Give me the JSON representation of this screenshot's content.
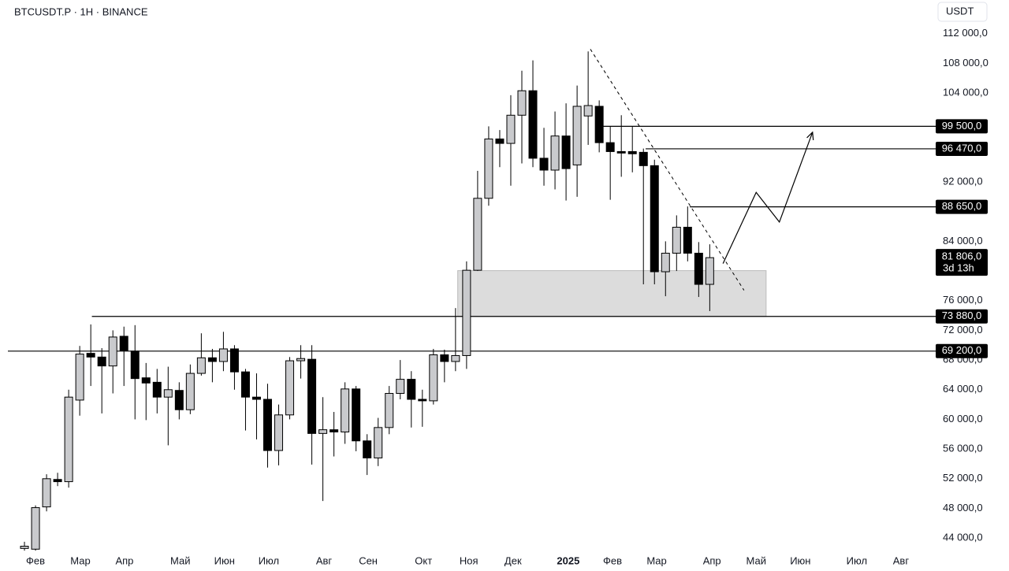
{
  "chart_data": {
    "type": "candlestick",
    "title": "BTCUSDT.P · 1H · BINANCE",
    "y_unit": "USDT",
    "open": [
      42600,
      42500,
      48200,
      51900,
      51600,
      62600,
      68900,
      68400,
      67200,
      71200,
      69200,
      65600,
      65000,
      63000,
      63900,
      61300,
      66200,
      68300,
      67800,
      69500,
      66400,
      63000,
      62700,
      55800,
      60600,
      67900,
      68100,
      58100,
      58600,
      58300,
      64100,
      57100,
      54800,
      58900,
      63500,
      65400,
      62700,
      62500,
      68700,
      67800,
      68600,
      80100,
      89800,
      97800,
      97200,
      101000,
      104300,
      95200,
      93600,
      98200,
      94300,
      100900,
      102200,
      97300,
      96100,
      96100,
      96000,
      94200,
      79900,
      82400,
      85900,
      82400,
      78200
    ],
    "high": [
      43500,
      48400,
      52600,
      52800,
      64000,
      69900,
      72800,
      69600,
      72000,
      72500,
      72700,
      67600,
      66800,
      67100,
      65000,
      67400,
      71600,
      69500,
      71800,
      70000,
      66800,
      66200,
      64800,
      62000,
      68400,
      70000,
      70000,
      63000,
      61000,
      65000,
      64500,
      58000,
      60200,
      64500,
      68000,
      66500,
      64000,
      69500,
      69400,
      75000,
      81300,
      93500,
      99500,
      99000,
      103700,
      107000,
      108400,
      99300,
      101500,
      102600,
      105000,
      109600,
      103000,
      99500,
      101000,
      99500,
      96500,
      95000,
      84000,
      87500,
      88700,
      83900,
      83600
    ],
    "low": [
      42300,
      42300,
      47600,
      51000,
      50800,
      60500,
      64500,
      60800,
      63500,
      64500,
      60000,
      59900,
      60800,
      56500,
      60000,
      60700,
      65900,
      65000,
      66500,
      64000,
      58500,
      57300,
      53500,
      53800,
      60000,
      65500,
      53900,
      49000,
      55000,
      56700,
      55700,
      52500,
      53700,
      58000,
      62700,
      58900,
      59000,
      62000,
      65000,
      66500,
      66800,
      80000,
      88800,
      94000,
      91500,
      94500,
      94000,
      91500,
      91000,
      89500,
      90000,
      97000,
      96000,
      89600,
      92700,
      93300,
      78200,
      78200,
      76600,
      80000,
      81300,
      76500,
      74600
    ],
    "close": [
      42900,
      48100,
      52000,
      51600,
      63000,
      68800,
      68400,
      67200,
      71100,
      69300,
      65500,
      64900,
      63000,
      64000,
      61300,
      66200,
      68300,
      67800,
      69500,
      66400,
      63000,
      62700,
      55800,
      60600,
      67900,
      68200,
      58100,
      58600,
      58300,
      64100,
      57100,
      54800,
      58900,
      63500,
      65400,
      62700,
      62500,
      68700,
      67800,
      68600,
      80100,
      89800,
      97800,
      97200,
      101000,
      104300,
      95200,
      93600,
      98200,
      93800,
      102200,
      102300,
      97300,
      96100,
      95900,
      95800,
      94200,
      79900,
      82400,
      85900,
      82400,
      78200,
      81800
    ],
    "up_color": "#c9cacd",
    "down_color": "#000000",
    "edge_color": "#000000",
    "xlim": [
      -1.5,
      82.3
    ],
    "xticks": [
      {
        "value": 1.0,
        "label": "Фев"
      },
      {
        "value": 5.06,
        "label": "Мар"
      },
      {
        "value": 9.05,
        "label": "Апр"
      },
      {
        "value": 14.1,
        "label": "Май"
      },
      {
        "value": 18.1,
        "label": "Июн"
      },
      {
        "value": 22.1,
        "label": "Июл"
      },
      {
        "value": 27.1,
        "label": "Авг"
      },
      {
        "value": 31.1,
        "label": "Сен"
      },
      {
        "value": 36.1,
        "label": "Окт"
      },
      {
        "value": 40.2,
        "label": "Ноя"
      },
      {
        "value": 44.2,
        "label": "Дек"
      },
      {
        "value": 49.2,
        "label": "2025"
      },
      {
        "value": 53.2,
        "label": "Фев"
      },
      {
        "value": 57.2,
        "label": "Мар"
      },
      {
        "value": 62.2,
        "label": "Апр"
      },
      {
        "value": 66.2,
        "label": "Май"
      },
      {
        "value": 70.2,
        "label": "Июн"
      },
      {
        "value": 75.3,
        "label": "Июл"
      },
      {
        "value": 79.3,
        "label": "Авг"
      }
    ],
    "ylim": [
      42000,
      116000
    ],
    "yticks": [
      {
        "value": 112000,
        "label": "112 000,0"
      },
      {
        "value": 108000,
        "label": "108 000,0"
      },
      {
        "value": 104000,
        "label": "104 000,0"
      },
      {
        "value": 92000,
        "label": "92 000,0"
      },
      {
        "value": 84000,
        "label": "84 000,0"
      },
      {
        "value": 76000,
        "label": "76 000,0"
      },
      {
        "value": 72000,
        "label": "72 000,0"
      },
      {
        "value": 68000,
        "label": "68 000,0"
      },
      {
        "value": 64000,
        "label": "64 000,0"
      },
      {
        "value": 60000,
        "label": "60 000,0"
      },
      {
        "value": 56000,
        "label": "56 000,0"
      },
      {
        "value": 52000,
        "label": "52 000,0"
      },
      {
        "value": 48000,
        "label": "48 000,0"
      },
      {
        "value": 44000,
        "label": "44 000,0"
      }
    ],
    "levels": [
      {
        "value": 99500,
        "label": "99 500,0",
        "from": 51.9
      },
      {
        "value": 96470,
        "label": "96 470,0",
        "from": 56.2
      },
      {
        "value": 88650,
        "label": "88 650,0",
        "from": 60.2
      },
      {
        "value": 73880,
        "label": "73 880,0",
        "from": 6.1
      },
      {
        "value": 69200,
        "label": "69 200,0",
        "from": -1.5
      }
    ],
    "last_price": {
      "value": 81806,
      "label": "81 806,0",
      "countdown": "3d 13h"
    },
    "zone": {
      "x": [
        39.2,
        67.1
      ],
      "y": [
        73880,
        80050
      ],
      "color": "#dcdcdc"
    },
    "trendline": {
      "x": [
        51.2,
        65.1
      ],
      "y": [
        109900,
        77400
      ]
    },
    "projection": {
      "x": [
        63.2,
        66.2,
        68.3,
        71.3
      ],
      "y": [
        81000,
        90600,
        86600,
        98700
      ]
    }
  }
}
